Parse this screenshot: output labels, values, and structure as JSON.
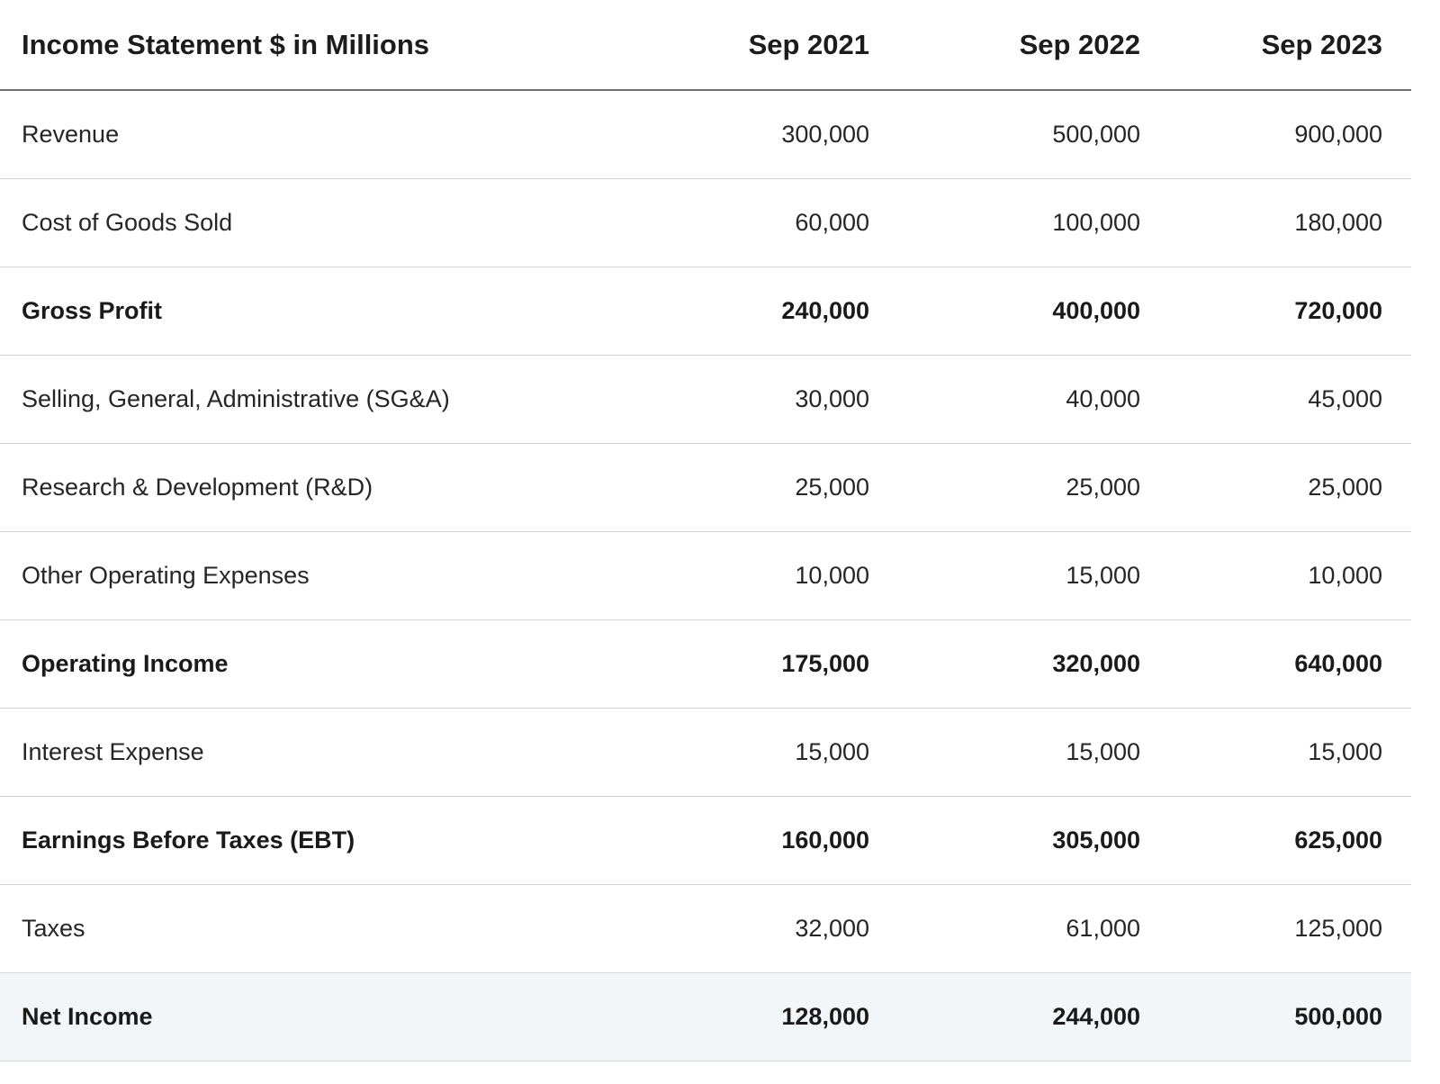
{
  "table": {
    "header": {
      "label": "Income Statement $ in Millions",
      "periods": [
        "Sep 2021",
        "Sep 2022",
        "Sep 2023"
      ]
    },
    "rows": [
      {
        "label": "Revenue",
        "values": [
          "300,000",
          "500,000",
          "900,000"
        ]
      },
      {
        "label": "Cost of Goods Sold",
        "values": [
          "60,000",
          "100,000",
          "180,000"
        ]
      },
      {
        "label": "Gross Profit",
        "values": [
          "240,000",
          "400,000",
          "720,000"
        ]
      },
      {
        "label": "Selling, General, Administrative (SG&A)",
        "values": [
          "30,000",
          "40,000",
          "45,000"
        ]
      },
      {
        "label": "Research & Development (R&D)",
        "values": [
          "25,000",
          "25,000",
          "25,000"
        ]
      },
      {
        "label": "Other Operating Expenses",
        "values": [
          "10,000",
          "15,000",
          "10,000"
        ]
      },
      {
        "label": "Operating Income",
        "values": [
          "175,000",
          "320,000",
          "640,000"
        ]
      },
      {
        "label": "Interest Expense",
        "values": [
          "15,000",
          "15,000",
          "15,000"
        ]
      },
      {
        "label": "Earnings Before Taxes (EBT)",
        "values": [
          "160,000",
          "305,000",
          "625,000"
        ]
      },
      {
        "label": "Taxes",
        "values": [
          "32,000",
          "61,000",
          "125,000"
        ]
      },
      {
        "label": "Net Income",
        "values": [
          "128,000",
          "244,000",
          "500,000"
        ]
      }
    ]
  }
}
